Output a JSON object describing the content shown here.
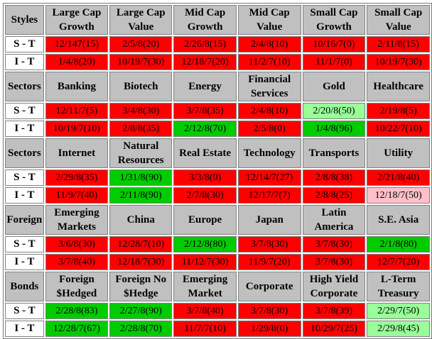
{
  "colors": {
    "red": "#ff0000",
    "green": "#00cc00",
    "light_green": "#99ff99",
    "pink": "#ffc0cb",
    "header_gray": "#c0c0c0"
  },
  "sections": [
    {
      "label": "Styles",
      "categories": [
        "Large Cap Growth",
        "Large Cap Value",
        "Mid Cap Growth",
        "Mid Cap Value",
        "Small Cap Growth",
        "Small Cap Value"
      ],
      "rows": [
        {
          "label": "S - T",
          "values": [
            "12/147(15)",
            "2/5/8(20)",
            "2/26/8(15)",
            "2/4/8(10)",
            "10/16/7(0)",
            "2/11/8(15)"
          ],
          "colors": [
            "red",
            "red",
            "red",
            "red",
            "red",
            "red"
          ]
        },
        {
          "label": "I - T",
          "values": [
            "1/4/8(20)",
            "10/19/7(30)",
            "12/18/7(20)",
            "11/2/7(10)",
            "11/1/7(0)",
            "10/19/7(30)"
          ],
          "colors": [
            "red",
            "red",
            "red",
            "red",
            "red",
            "red"
          ]
        }
      ]
    },
    {
      "label": "Sectors",
      "categories": [
        "Banking",
        "Biotech",
        "Energy",
        "Financial Services",
        "Gold",
        "Healthcare"
      ],
      "rows": [
        {
          "label": "S - T",
          "values": [
            "12/11/7(5)",
            "3/4/8(30)",
            "3/7/8(35)",
            "2/4/8(10)",
            "2/20/8(50)",
            "2/19/8(5)"
          ],
          "colors": [
            "red",
            "red",
            "red",
            "red",
            "light_green",
            "red"
          ]
        },
        {
          "label": "I - T",
          "values": [
            "10/19/7(10)",
            "2/8/8(35)",
            "2/12/8(70)",
            "2/5/8(0)",
            "1/4/8(96)",
            "10/22/7(10)"
          ],
          "colors": [
            "red",
            "red",
            "green",
            "red",
            "green",
            "red"
          ]
        }
      ]
    },
    {
      "label": "Sectors",
      "categories": [
        "Internet",
        "Natural Resources",
        "Real Estate",
        "Technology",
        "Transports",
        "Utility"
      ],
      "rows": [
        {
          "label": "S - T",
          "values": [
            "2/29/8(35)",
            "1/31/8(90)",
            "3/3/8(0)",
            "12/14/7(27)",
            "2/8/8(38)",
            "2/21/8(40)"
          ],
          "colors": [
            "red",
            "green",
            "red",
            "red",
            "red",
            "red"
          ]
        },
        {
          "label": "I - T",
          "values": [
            "11/9/7(40)",
            "2/11/8(90)",
            "2/7/8(30)",
            "12/17/7(7)",
            "2/8/8(25)",
            "12/18/7(50)"
          ],
          "colors": [
            "red",
            "green",
            "red",
            "red",
            "red",
            "pink"
          ]
        }
      ]
    },
    {
      "label": "Foreign",
      "categories": [
        "Emerging Markets",
        "China",
        "Europe",
        "Japan",
        "Latin America",
        "S.E. Asia"
      ],
      "rows": [
        {
          "label": "S - T",
          "values": [
            "3/6/8(30)",
            "12/28/7(10)",
            "2/12/8(80)",
            "3/7/8(30)",
            "3/7/8(30)",
            "2/1/8(80)"
          ],
          "colors": [
            "red",
            "red",
            "green",
            "red",
            "red",
            "green"
          ]
        },
        {
          "label": "I - T",
          "values": [
            "3/7/8(40)",
            "12/18/7(30)",
            "11/12/7(30)",
            "11/9/7(20)",
            "3/7/8(30)",
            "12/7/7(20)"
          ],
          "colors": [
            "red",
            "red",
            "red",
            "red",
            "red",
            "red"
          ]
        }
      ]
    },
    {
      "label": "Bonds",
      "categories": [
        "Foreign $Hedged",
        "Foreign No $Hedge",
        "Emerging Market",
        "Corporate",
        "High Yield Corporate",
        "L-Term Treasury"
      ],
      "rows": [
        {
          "label": "S - T",
          "values": [
            "2/28/8(83)",
            "2/27/8(90)",
            "3/7/8(40)",
            "3/7/8(30)",
            "3/7/8(39)",
            "2/29/7(50)"
          ],
          "colors": [
            "green",
            "green",
            "red",
            "red",
            "red",
            "light_green"
          ]
        },
        {
          "label": "I - T",
          "values": [
            "12/28/7(67)",
            "2/28/8(70)",
            "11/7/7(10)",
            "1/29/8(0)",
            "10/29/7(25)",
            "2/29/8(45)"
          ],
          "colors": [
            "green",
            "green",
            "red",
            "red",
            "red",
            "light_green"
          ]
        }
      ]
    }
  ]
}
